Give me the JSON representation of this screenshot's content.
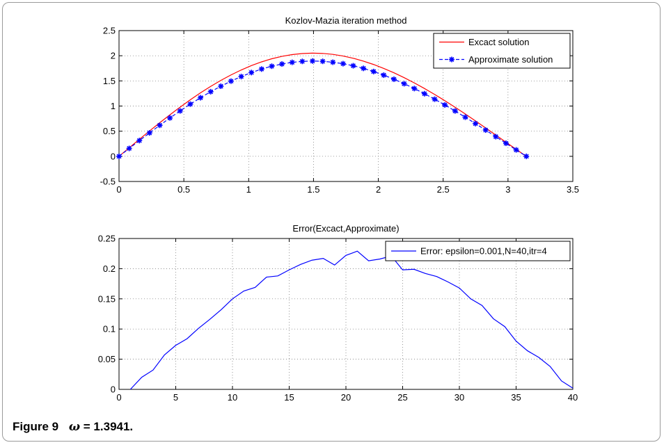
{
  "figure": {
    "caption_label": "Figure 9",
    "caption_symbol": "ω",
    "caption_value": "= 1.3941."
  },
  "chart_data": [
    {
      "type": "line",
      "title": "Kozlov-Mazia iteration method",
      "xlabel": "",
      "ylabel": "",
      "xlim": [
        0,
        3.5
      ],
      "ylim": [
        -0.5,
        2.5
      ],
      "xticks": [
        0,
        0.5,
        1,
        1.5,
        2,
        2.5,
        3,
        3.5
      ],
      "yticks": [
        -0.5,
        0,
        0.5,
        1,
        1.5,
        2,
        2.5
      ],
      "xtick_labels": [
        "0",
        "0.5",
        "1",
        "1.5",
        "2",
        "2.5",
        "3",
        "3.5"
      ],
      "ytick_labels": [
        "-0.5",
        "0",
        "0.5",
        "1",
        "1.5",
        "2",
        "2.5"
      ],
      "grid": true,
      "legend_position": "top-right",
      "series": [
        {
          "name": "Excact solution",
          "color": "#ff0000",
          "style": "solid",
          "x": [
            0,
            0.0785,
            0.1571,
            0.2356,
            0.3142,
            0.3927,
            0.4712,
            0.5498,
            0.6283,
            0.7069,
            0.7854,
            0.8639,
            0.9425,
            1.021,
            1.0996,
            1.1781,
            1.2566,
            1.3352,
            1.4137,
            1.4923,
            1.5708,
            1.6493,
            1.7279,
            1.8064,
            1.885,
            1.9635,
            2.042,
            2.1206,
            2.1991,
            2.2777,
            2.3562,
            2.4347,
            2.5133,
            2.5918,
            2.6704,
            2.7489,
            2.8274,
            2.906,
            2.9845,
            3.0631,
            3.1416
          ],
          "y": [
            0,
            0.17,
            0.339,
            0.505,
            0.668,
            0.826,
            0.978,
            1.124,
            1.262,
            1.391,
            1.51,
            1.619,
            1.717,
            1.804,
            1.878,
            1.94,
            1.988,
            2.023,
            2.044,
            2.052,
            2.046,
            2.027,
            1.995,
            1.95,
            1.893,
            1.826,
            1.748,
            1.661,
            1.564,
            1.46,
            1.348,
            1.23,
            1.106,
            0.976,
            0.842,
            0.705,
            0.565,
            0.423,
            0.281,
            0.139,
            0
          ]
        },
        {
          "name": "Approximate solution",
          "color": "#0000ff",
          "style": "dashed",
          "marker": "asterisk",
          "x": [
            0,
            0.0785,
            0.1571,
            0.2356,
            0.3142,
            0.3927,
            0.4712,
            0.5498,
            0.6283,
            0.7069,
            0.7854,
            0.8639,
            0.9425,
            1.021,
            1.0996,
            1.1781,
            1.2566,
            1.3352,
            1.4137,
            1.4923,
            1.5708,
            1.6493,
            1.7279,
            1.8064,
            1.885,
            1.9635,
            2.042,
            2.1206,
            2.1991,
            2.2777,
            2.3562,
            2.4347,
            2.5133,
            2.5918,
            2.6704,
            2.7489,
            2.8274,
            2.906,
            2.9845,
            3.0631,
            3.1416
          ],
          "y": [
            0,
            0.157,
            0.313,
            0.466,
            0.617,
            0.763,
            0.903,
            1.038,
            1.165,
            1.285,
            1.394,
            1.495,
            1.586,
            1.666,
            1.735,
            1.792,
            1.836,
            1.869,
            1.888,
            1.895,
            1.889,
            1.871,
            1.842,
            1.801,
            1.749,
            1.686,
            1.614,
            1.533,
            1.444,
            1.348,
            1.245,
            1.136,
            1.021,
            0.902,
            0.778,
            0.651,
            0.522,
            0.391,
            0.26,
            0.128,
            0
          ]
        }
      ]
    },
    {
      "type": "line",
      "title": "Error(Excact,Approximate)",
      "xlabel": "",
      "ylabel": "",
      "xlim": [
        0,
        40
      ],
      "ylim": [
        0,
        0.25
      ],
      "xticks": [
        0,
        5,
        10,
        15,
        20,
        25,
        30,
        35,
        40
      ],
      "yticks": [
        0,
        0.05,
        0.1,
        0.15,
        0.2,
        0.25
      ],
      "xtick_labels": [
        "0",
        "5",
        "10",
        "15",
        "20",
        "25",
        "30",
        "35",
        "40"
      ],
      "ytick_labels": [
        "0",
        "0.05",
        "0.1",
        "0.15",
        "0.2",
        "0.25"
      ],
      "grid": true,
      "legend_position": "top-right",
      "series": [
        {
          "name": "Error: epsilon=0.001,N=40,itr=4",
          "color": "#0000ff",
          "style": "solid",
          "x": [
            1,
            2,
            3,
            4,
            5,
            6,
            7,
            8,
            9,
            10,
            11,
            12,
            13,
            14,
            15,
            16,
            17,
            18,
            19,
            20,
            21,
            22,
            23,
            24,
            25,
            26,
            27,
            28,
            29,
            30,
            31,
            32,
            33,
            34,
            35,
            36,
            37,
            38,
            39,
            40
          ],
          "y": [
            0,
            0.02,
            0.032,
            0.057,
            0.073,
            0.084,
            0.101,
            0.116,
            0.132,
            0.15,
            0.163,
            0.169,
            0.186,
            0.188,
            0.198,
            0.207,
            0.214,
            0.217,
            0.206,
            0.222,
            0.229,
            0.213,
            0.216,
            0.221,
            0.198,
            0.199,
            0.192,
            0.187,
            0.178,
            0.168,
            0.15,
            0.139,
            0.117,
            0.104,
            0.08,
            0.064,
            0.053,
            0.038,
            0.014,
            0.002
          ]
        }
      ]
    }
  ]
}
